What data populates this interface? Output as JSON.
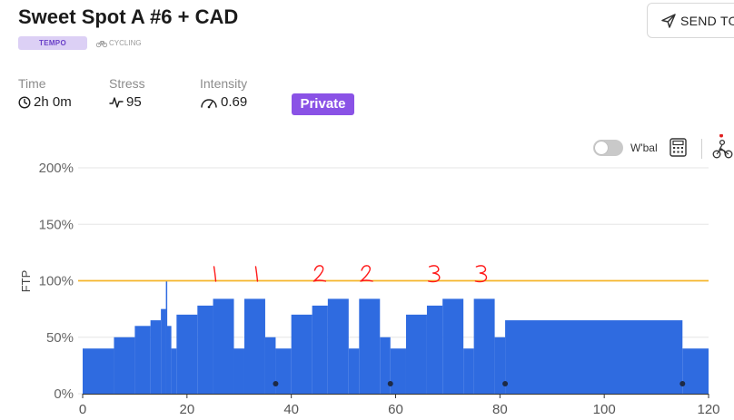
{
  "header": {
    "title": "Sweet Spot A #6 + CAD",
    "tag_type": "TEMPO",
    "tag_sport": "CYCLING",
    "send_button": "SEND TO"
  },
  "stats": {
    "time": {
      "label": "Time",
      "value": "2h 0m",
      "icon": "clock-icon"
    },
    "stress": {
      "label": "Stress",
      "value": "95",
      "icon": "pulse-icon"
    },
    "intensity": {
      "label": "Intensity",
      "value": "0.69",
      "icon": "gauge-icon"
    },
    "privacy_badge": "Private"
  },
  "toolbar": {
    "wbal_label": "W'bal",
    "wbal_enabled": false
  },
  "colors": {
    "accent": "#8a52e6",
    "bars": "#2f6be0",
    "ftp_line": "#f5b52a",
    "annotation": "#ff1a1a"
  },
  "chart_data": {
    "type": "area",
    "xlabel": "",
    "ylabel": "FTP",
    "xlim": [
      0,
      120
    ],
    "ylim": [
      0,
      200
    ],
    "x_ticks": [
      0,
      20,
      40,
      60,
      80,
      100,
      120
    ],
    "y_ticks": [
      0,
      50,
      100,
      150,
      200
    ],
    "y_tick_labels": [
      "0%",
      "50%",
      "100%",
      "150%",
      "200%"
    ],
    "reference_line": {
      "label": "100%",
      "value": 100
    },
    "segments": [
      {
        "start": 0,
        "end": 6,
        "power": 40
      },
      {
        "start": 6,
        "end": 10,
        "power": 50
      },
      {
        "start": 10,
        "end": 13,
        "power": 60
      },
      {
        "start": 13,
        "end": 15,
        "power": 65
      },
      {
        "start": 15,
        "end": 16,
        "power": 75
      },
      {
        "start": 16,
        "end": 17,
        "power": 60
      },
      {
        "start": 17,
        "end": 18,
        "power": 40
      },
      {
        "start": 18,
        "end": 22,
        "power": 70
      },
      {
        "start": 22,
        "end": 25,
        "power": 78
      },
      {
        "start": 25,
        "end": 29,
        "power": 84
      },
      {
        "start": 29,
        "end": 31,
        "power": 40
      },
      {
        "start": 31,
        "end": 35,
        "power": 84
      },
      {
        "start": 35,
        "end": 37,
        "power": 50
      },
      {
        "start": 37,
        "end": 40,
        "power": 40
      },
      {
        "start": 40,
        "end": 44,
        "power": 70
      },
      {
        "start": 44,
        "end": 47,
        "power": 78
      },
      {
        "start": 47,
        "end": 51,
        "power": 84
      },
      {
        "start": 51,
        "end": 53,
        "power": 40
      },
      {
        "start": 53,
        "end": 57,
        "power": 84
      },
      {
        "start": 57,
        "end": 59,
        "power": 50
      },
      {
        "start": 59,
        "end": 62,
        "power": 40
      },
      {
        "start": 62,
        "end": 66,
        "power": 70
      },
      {
        "start": 66,
        "end": 69,
        "power": 78
      },
      {
        "start": 69,
        "end": 73,
        "power": 84
      },
      {
        "start": 73,
        "end": 75,
        "power": 40
      },
      {
        "start": 75,
        "end": 79,
        "power": 84
      },
      {
        "start": 79,
        "end": 81,
        "power": 50
      },
      {
        "start": 81,
        "end": 115,
        "power": 65
      },
      {
        "start": 115,
        "end": 120,
        "power": 40
      }
    ],
    "spike": {
      "x": 16,
      "power": 100
    },
    "markers": [
      37,
      59,
      81,
      115
    ],
    "annotations": [
      {
        "text": "1",
        "x": 25
      },
      {
        "text": "1",
        "x": 33
      },
      {
        "text": "2",
        "x": 45
      },
      {
        "text": "2",
        "x": 54
      },
      {
        "text": "3",
        "x": 67
      },
      {
        "text": "3",
        "x": 76
      }
    ]
  }
}
